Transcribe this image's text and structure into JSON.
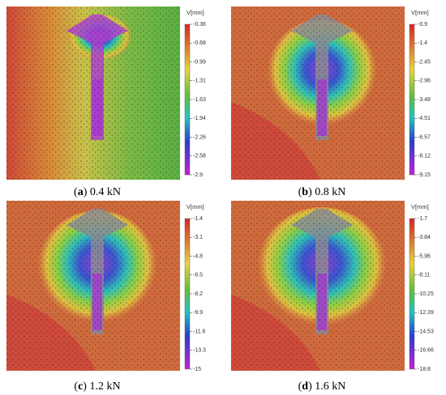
{
  "panels": [
    {
      "caption": [
        "(",
        "a",
        ") 0.4 kN"
      ],
      "unit": "V[mm]",
      "ticks": [
        -0.36,
        -0.68,
        -0.99,
        -1.31,
        -1.63,
        -1.94,
        -2.26,
        -2.58,
        -2.9
      ]
    },
    {
      "caption": [
        "(",
        "b",
        ") 0.8 kN"
      ],
      "unit": "V[mm]",
      "ticks": [
        -0.9,
        -1.4,
        -2.45,
        -2.96,
        -3.48,
        -4.51,
        -6.57,
        -8.12,
        -9.15
      ]
    },
    {
      "caption": [
        "(",
        "c",
        ") 1.2 kN"
      ],
      "unit": "V[mm]",
      "ticks": [
        -1.4,
        -3.1,
        -4.8,
        -6.5,
        -8.2,
        -9.9,
        -11.6,
        -13.3,
        -15
      ]
    },
    {
      "caption": [
        "(",
        "d",
        ") 1.6 kN"
      ],
      "unit": "V[mm]",
      "ticks": [
        -1.7,
        -3.84,
        -5.96,
        -8.11,
        -10.25,
        -12.39,
        -14.53,
        -16.66,
        -18.8
      ]
    }
  ]
}
